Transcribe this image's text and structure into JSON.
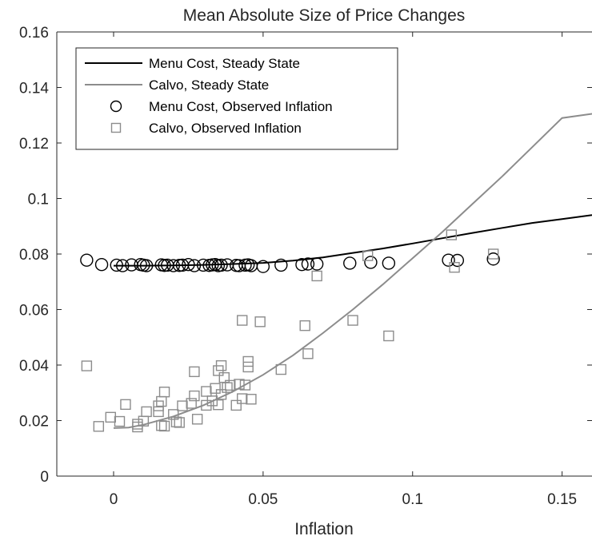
{
  "chart_data": {
    "type": "scatter",
    "title": "Mean Absolute Size of Price Changes",
    "xlabel": "Inflation",
    "ylabel": "",
    "xlim": [
      -0.019,
      0.16
    ],
    "ylim": [
      0,
      0.16
    ],
    "xticks": [
      0,
      0.05,
      0.1,
      0.15
    ],
    "xtick_labels": [
      "0",
      "0.05",
      "0.1",
      "0.15"
    ],
    "yticks": [
      0,
      0.02,
      0.04,
      0.06,
      0.08,
      0.1,
      0.12,
      0.14,
      0.16
    ],
    "ytick_labels": [
      "0",
      "0.02",
      "0.04",
      "0.06",
      "0.08",
      "0.1",
      "0.12",
      "0.14",
      "0.16"
    ],
    "grid": false,
    "legend_position": "top-left",
    "colors": {
      "menu": "#000000",
      "calvo": "#8c8c8c",
      "axis": "#262626"
    },
    "series": [
      {
        "name": "Menu Cost, Steady State",
        "kind": "line",
        "points": [
          [
            0.0,
            0.0758
          ],
          [
            0.01,
            0.0758
          ],
          [
            0.02,
            0.0759
          ],
          [
            0.03,
            0.0761
          ],
          [
            0.04,
            0.0764
          ],
          [
            0.05,
            0.0768
          ],
          [
            0.06,
            0.0776
          ],
          [
            0.07,
            0.0788
          ],
          [
            0.08,
            0.0804
          ],
          [
            0.09,
            0.082
          ],
          [
            0.1,
            0.0838
          ],
          [
            0.11,
            0.0857
          ],
          [
            0.12,
            0.0876
          ],
          [
            0.13,
            0.0894
          ],
          [
            0.14,
            0.0912
          ],
          [
            0.15,
            0.0926
          ],
          [
            0.16,
            0.094
          ]
        ]
      },
      {
        "name": "Calvo, Steady State",
        "kind": "line",
        "points": [
          [
            0.0,
            0.0173
          ],
          [
            0.005,
            0.0175
          ],
          [
            0.01,
            0.0185
          ],
          [
            0.02,
            0.0215
          ],
          [
            0.03,
            0.0255
          ],
          [
            0.04,
            0.0305
          ],
          [
            0.05,
            0.0365
          ],
          [
            0.06,
            0.0435
          ],
          [
            0.07,
            0.0515
          ],
          [
            0.08,
            0.06
          ],
          [
            0.09,
            0.069
          ],
          [
            0.1,
            0.0785
          ],
          [
            0.11,
            0.088
          ],
          [
            0.12,
            0.098
          ],
          [
            0.13,
            0.108
          ],
          [
            0.14,
            0.1185
          ],
          [
            0.15,
            0.129
          ],
          [
            0.16,
            0.1305
          ]
        ]
      },
      {
        "name": "Menu Cost, Observed Inflation",
        "kind": "circle",
        "points": [
          [
            -0.009,
            0.0778
          ],
          [
            -0.004,
            0.0762
          ],
          [
            0.001,
            0.076
          ],
          [
            0.003,
            0.0758
          ],
          [
            0.006,
            0.0761
          ],
          [
            0.009,
            0.0762
          ],
          [
            0.01,
            0.076
          ],
          [
            0.011,
            0.0758
          ],
          [
            0.016,
            0.0761
          ],
          [
            0.017,
            0.0759
          ],
          [
            0.018,
            0.076
          ],
          [
            0.02,
            0.0758
          ],
          [
            0.022,
            0.0759
          ],
          [
            0.023,
            0.076
          ],
          [
            0.025,
            0.0762
          ],
          [
            0.027,
            0.0758
          ],
          [
            0.03,
            0.076
          ],
          [
            0.032,
            0.0759
          ],
          [
            0.033,
            0.0761
          ],
          [
            0.034,
            0.0762
          ],
          [
            0.035,
            0.0758
          ],
          [
            0.036,
            0.076
          ],
          [
            0.038,
            0.0761
          ],
          [
            0.041,
            0.0759
          ],
          [
            0.042,
            0.0758
          ],
          [
            0.044,
            0.076
          ],
          [
            0.045,
            0.0761
          ],
          [
            0.046,
            0.0758
          ],
          [
            0.05,
            0.0755
          ],
          [
            0.056,
            0.076
          ],
          [
            0.063,
            0.0762
          ],
          [
            0.065,
            0.0764
          ],
          [
            0.068,
            0.0764
          ],
          [
            0.079,
            0.0767
          ],
          [
            0.086,
            0.077
          ],
          [
            0.092,
            0.0767
          ],
          [
            0.112,
            0.0778
          ],
          [
            0.115,
            0.0777
          ],
          [
            0.127,
            0.0782
          ]
        ]
      },
      {
        "name": "Calvo, Observed Inflation",
        "kind": "square",
        "points": [
          [
            -0.009,
            0.0397
          ],
          [
            -0.005,
            0.0179
          ],
          [
            -0.001,
            0.0212
          ],
          [
            0.002,
            0.0197
          ],
          [
            0.004,
            0.0258
          ],
          [
            0.008,
            0.0177
          ],
          [
            0.008,
            0.0187
          ],
          [
            0.01,
            0.0198
          ],
          [
            0.011,
            0.0232
          ],
          [
            0.015,
            0.0232
          ],
          [
            0.015,
            0.0253
          ],
          [
            0.016,
            0.0269
          ],
          [
            0.016,
            0.0182
          ],
          [
            0.017,
            0.018
          ],
          [
            0.017,
            0.0303
          ],
          [
            0.02,
            0.0222
          ],
          [
            0.021,
            0.0195
          ],
          [
            0.022,
            0.0193
          ],
          [
            0.023,
            0.0253
          ],
          [
            0.026,
            0.0262
          ],
          [
            0.027,
            0.0289
          ],
          [
            0.027,
            0.0376
          ],
          [
            0.028,
            0.0205
          ],
          [
            0.031,
            0.0255
          ],
          [
            0.031,
            0.0305
          ],
          [
            0.033,
            0.0271
          ],
          [
            0.034,
            0.0316
          ],
          [
            0.035,
            0.038
          ],
          [
            0.035,
            0.0257
          ],
          [
            0.036,
            0.0398
          ],
          [
            0.036,
            0.0294
          ],
          [
            0.037,
            0.0355
          ],
          [
            0.038,
            0.0319
          ],
          [
            0.039,
            0.0327
          ],
          [
            0.041,
            0.0255
          ],
          [
            0.042,
            0.0331
          ],
          [
            0.043,
            0.0279
          ],
          [
            0.043,
            0.0561
          ],
          [
            0.044,
            0.0328
          ],
          [
            0.045,
            0.0393
          ],
          [
            0.045,
            0.0413
          ],
          [
            0.046,
            0.0277
          ],
          [
            0.049,
            0.0556
          ],
          [
            0.056,
            0.0384
          ],
          [
            0.064,
            0.0542
          ],
          [
            0.065,
            0.0441
          ],
          [
            0.068,
            0.0721
          ],
          [
            0.08,
            0.0561
          ],
          [
            0.085,
            0.0794
          ],
          [
            0.092,
            0.0505
          ],
          [
            0.113,
            0.0869
          ],
          [
            0.114,
            0.0752
          ],
          [
            0.127,
            0.08
          ]
        ]
      }
    ]
  }
}
